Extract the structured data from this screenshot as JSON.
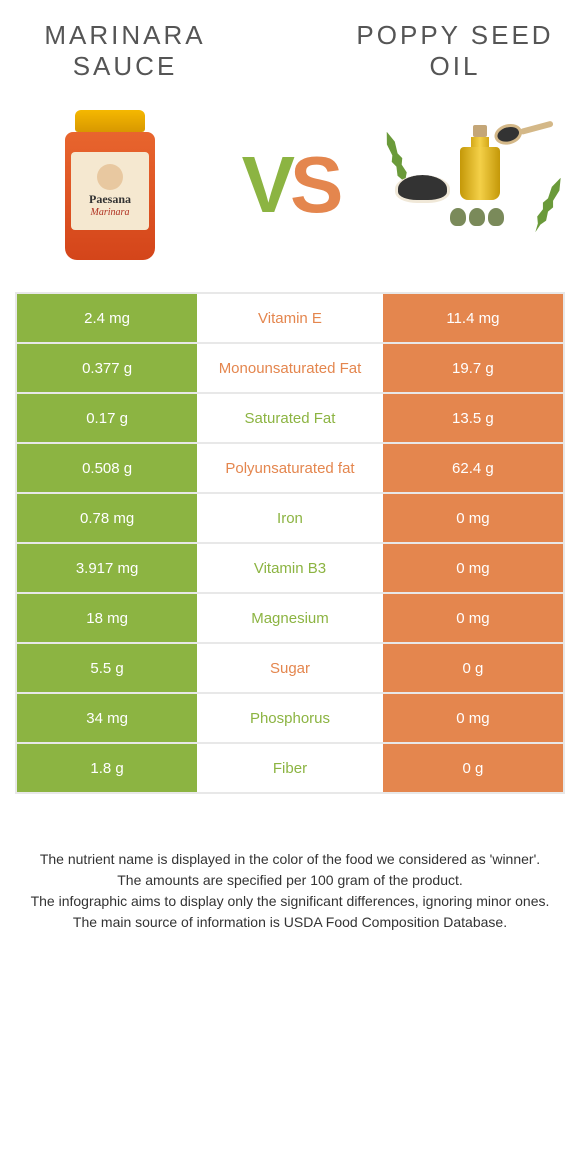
{
  "colors": {
    "left_bg": "#8cb442",
    "right_bg": "#e4864e",
    "mid_bg": "#ffffff",
    "cell_text": "#ffffff",
    "border": "#e8e8e8",
    "title_text": "#555555"
  },
  "left_title": "MARINARA SAUCE",
  "right_title": "POPPY SEED OIL",
  "jar_brand": "Paesana",
  "jar_brand2": "Marinara",
  "vs_v": "V",
  "vs_s": "S",
  "rows": [
    {
      "left": "2.4 mg",
      "mid": "Vitamin E",
      "right": "11.4 mg",
      "winner": "right"
    },
    {
      "left": "0.377 g",
      "mid": "Monounsaturated Fat",
      "right": "19.7 g",
      "winner": "right"
    },
    {
      "left": "0.17 g",
      "mid": "Saturated Fat",
      "right": "13.5 g",
      "winner": "left"
    },
    {
      "left": "0.508 g",
      "mid": "Polyunsaturated fat",
      "right": "62.4 g",
      "winner": "right"
    },
    {
      "left": "0.78 mg",
      "mid": "Iron",
      "right": "0 mg",
      "winner": "left"
    },
    {
      "left": "3.917 mg",
      "mid": "Vitamin B3",
      "right": "0 mg",
      "winner": "left"
    },
    {
      "left": "18 mg",
      "mid": "Magnesium",
      "right": "0 mg",
      "winner": "left"
    },
    {
      "left": "5.5 g",
      "mid": "Sugar",
      "right": "0 g",
      "winner": "right"
    },
    {
      "left": "34 mg",
      "mid": "Phosphorus",
      "right": "0 mg",
      "winner": "left"
    },
    {
      "left": "1.8 g",
      "mid": "Fiber",
      "right": "0 g",
      "winner": "left"
    }
  ],
  "notes": [
    "The nutrient name is displayed in the color of the food we considered as 'winner'.",
    "The amounts are specified per 100 gram of the product.",
    "The infographic aims to display only the significant differences, ignoring minor ones.",
    "The main source of information is USDA Food Composition Database."
  ]
}
